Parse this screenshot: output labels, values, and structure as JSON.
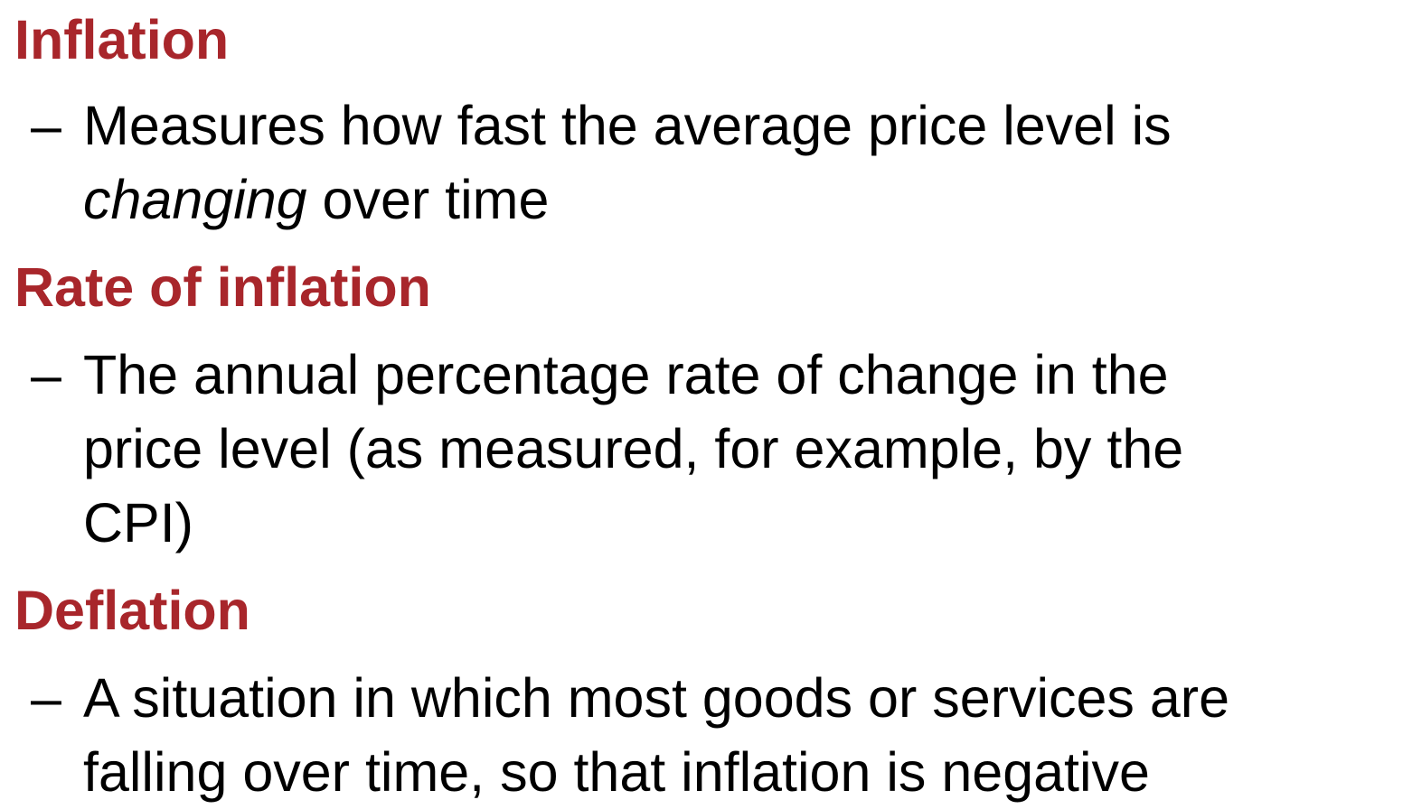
{
  "colors": {
    "term": "#a8262b",
    "text": "#000000",
    "background": "#ffffff"
  },
  "terms": [
    {
      "title": "Inflation",
      "dash": "–",
      "lines": [
        "Measures how fast the average price level is",
        {
          "italic": "changing",
          "rest": " over time"
        }
      ]
    },
    {
      "title": "Rate of inflation",
      "dash": "–",
      "lines": [
        "The annual percentage rate of change in the",
        "price level (as measured, for example, by the",
        "CPI)"
      ]
    },
    {
      "title": "Deflation",
      "dash": "–",
      "lines": [
        "A situation in which most goods or services are",
        "falling over time, so that inflation is negative"
      ]
    }
  ]
}
